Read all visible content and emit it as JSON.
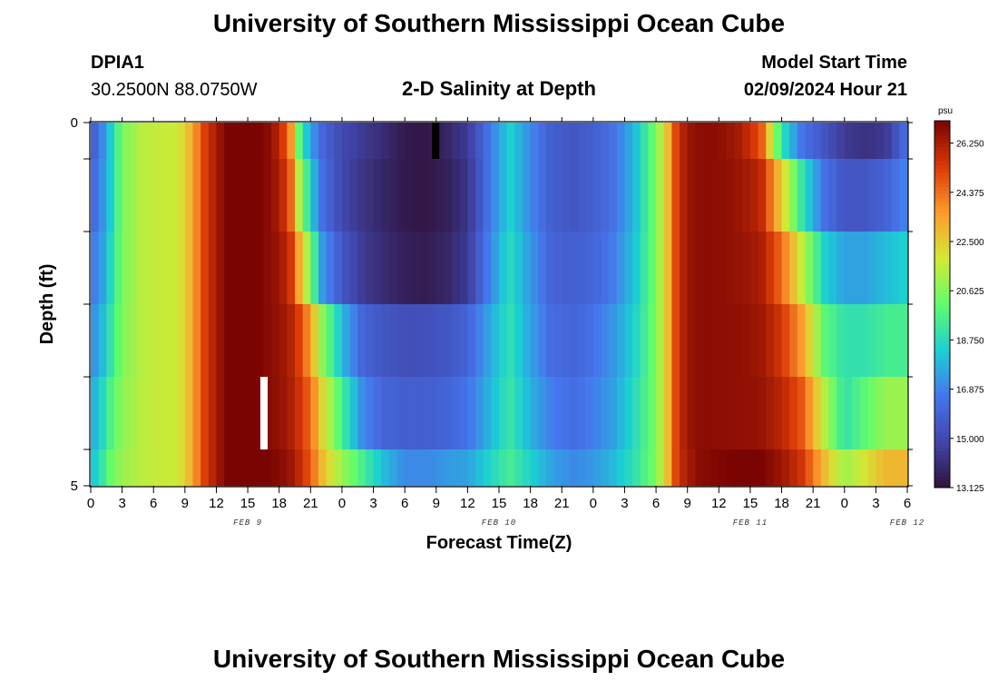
{
  "header": {
    "title": "University of Southern Mississippi Ocean Cube",
    "station": "DPIA1",
    "coordinates": "30.2500N  88.0750W",
    "plot_title": "2-D Salinity at Depth",
    "model_start_label": "Model Start Time",
    "model_start_value": "02/09/2024 Hour 21",
    "footer_title": "University of Southern Mississippi Ocean Cube"
  },
  "colorbar": {
    "unit": "psu",
    "labels": [
      "26.250",
      "24.375",
      "22.500",
      "20.625",
      "18.750",
      "16.875",
      "15.000",
      "13.125"
    ],
    "min": 13.125,
    "max": 27.1
  },
  "colors": {
    "colormap": [
      "#30123b",
      "#4145ab",
      "#4675ed",
      "#1bcfd4",
      "#61fc6c",
      "#d2e935",
      "#fe9b2d",
      "#db3a07",
      "#7a0403"
    ]
  },
  "chart_data": {
    "type": "heatmap",
    "title": "2-D Salinity at Depth",
    "xlabel": "Forecast Time(Z)",
    "ylabel": "Depth (ft)",
    "x_tick_labels": [
      "0",
      "3",
      "6",
      "9",
      "12",
      "15",
      "18",
      "21",
      "0",
      "3",
      "6",
      "9",
      "12",
      "15",
      "18",
      "21",
      "0",
      "3",
      "6",
      "9",
      "12",
      "15",
      "18",
      "21",
      "0",
      "3",
      "6"
    ],
    "day_labels": [
      {
        "label": "FEB 9",
        "hour": 15
      },
      {
        "label": "FEB 10",
        "hour": 39
      },
      {
        "label": "FEB 11",
        "hour": 63
      },
      {
        "label": "FEB 12",
        "hour": 78
      }
    ],
    "y_tick_labels": [
      "0",
      "5"
    ],
    "xlim": [
      0,
      78
    ],
    "ylim": [
      0,
      5
    ],
    "depth_levels": [
      0.5,
      1.5,
      2.5,
      3.5,
      4.5
    ],
    "depth_bands": [
      [
        0,
        0.5
      ],
      [
        0.5,
        1.5
      ],
      [
        1.5,
        2.5
      ],
      [
        2.5,
        3.5
      ],
      [
        3.5,
        4.5
      ],
      [
        4.5,
        5
      ]
    ],
    "value_range": [
      13.125,
      27.1
    ],
    "time_keyframes": [
      0,
      1,
      2,
      3,
      5,
      8,
      9,
      10,
      11,
      12,
      13,
      14,
      15,
      16,
      17,
      18,
      19,
      20,
      21,
      22,
      24,
      26,
      28,
      30,
      32,
      34,
      36,
      38,
      40,
      42,
      44,
      46,
      48,
      50,
      52,
      54,
      55,
      56,
      57,
      58,
      60,
      62,
      64,
      66,
      68,
      70,
      72,
      74,
      76,
      78
    ],
    "profiles": [
      [
        15.5,
        16.8,
        18.5,
        20.5,
        21.5,
        21.8,
        22.3,
        23.8,
        25.5,
        26.3,
        27.1,
        27.1,
        27.1,
        27.1,
        26.8,
        26.0,
        24.3,
        19.5,
        17.5,
        16.2,
        15.0,
        14.5,
        14.0,
        13.4,
        13.3,
        13.8,
        14.5,
        16.5,
        18.5,
        17.0,
        15.8,
        15.5,
        15.8,
        16.5,
        18.0,
        20.5,
        22.5,
        25.5,
        26.5,
        26.8,
        26.8,
        26.3,
        25.0,
        19.0,
        16.5,
        15.5,
        14.5,
        14.2,
        14.5,
        16.5
      ],
      [
        16.0,
        17.0,
        18.5,
        20.5,
        21.5,
        21.8,
        22.3,
        23.8,
        25.5,
        26.3,
        27.1,
        27.1,
        27.1,
        27.1,
        26.8,
        26.3,
        25.0,
        21.0,
        18.5,
        16.5,
        15.0,
        14.3,
        13.8,
        13.4,
        13.3,
        13.6,
        14.3,
        16.5,
        18.5,
        17.0,
        15.8,
        15.5,
        15.8,
        16.5,
        18.0,
        20.5,
        22.5,
        25.5,
        26.5,
        26.8,
        26.8,
        26.5,
        26.0,
        22.5,
        19.0,
        16.5,
        15.5,
        15.5,
        16.0,
        17.0
      ],
      [
        16.5,
        17.3,
        18.8,
        20.5,
        21.5,
        21.8,
        22.3,
        23.8,
        25.5,
        26.3,
        27.1,
        27.1,
        27.1,
        27.1,
        26.8,
        26.5,
        25.8,
        23.0,
        20.5,
        17.5,
        15.5,
        14.5,
        14.0,
        13.6,
        13.5,
        13.8,
        14.5,
        16.8,
        18.8,
        17.3,
        16.0,
        15.8,
        16.0,
        16.8,
        18.2,
        20.5,
        22.5,
        25.5,
        26.5,
        26.8,
        26.8,
        26.6,
        26.3,
        24.5,
        21.5,
        18.5,
        17.5,
        17.5,
        18.0,
        18.5
      ],
      [
        17.0,
        17.8,
        19.2,
        20.6,
        21.5,
        21.8,
        22.3,
        23.8,
        25.5,
        26.3,
        27.1,
        27.1,
        27.1,
        27.1,
        26.8,
        26.6,
        26.2,
        25.2,
        23.5,
        21.0,
        18.0,
        16.0,
        15.5,
        15.2,
        15.3,
        15.5,
        16.0,
        17.5,
        19.0,
        17.5,
        16.3,
        16.0,
        16.5,
        17.3,
        18.5,
        20.5,
        22.5,
        25.5,
        26.5,
        26.8,
        26.8,
        26.7,
        26.5,
        25.5,
        23.5,
        20.0,
        19.0,
        19.0,
        19.5,
        19.5
      ],
      [
        17.5,
        18.5,
        19.8,
        20.8,
        21.5,
        21.8,
        22.3,
        23.8,
        25.5,
        26.3,
        27.1,
        27.1,
        27.1,
        27.1,
        26.8,
        26.7,
        26.3,
        25.5,
        24.5,
        22.5,
        19.5,
        17.0,
        16.0,
        15.8,
        15.8,
        16.0,
        16.5,
        17.8,
        19.2,
        17.8,
        16.8,
        16.3,
        16.8,
        17.5,
        18.8,
        20.5,
        22.5,
        25.5,
        26.5,
        26.8,
        26.8,
        26.7,
        26.6,
        26.0,
        24.8,
        21.5,
        19.0,
        20.0,
        21.0,
        21.0
      ],
      [
        18.0,
        19.0,
        20.3,
        21.0,
        21.5,
        21.8,
        22.3,
        23.8,
        25.5,
        26.3,
        27.1,
        27.1,
        27.1,
        27.1,
        27.1,
        26.9,
        26.6,
        25.8,
        24.8,
        23.0,
        21.0,
        19.5,
        18.0,
        17.0,
        17.0,
        17.3,
        17.5,
        18.5,
        19.5,
        18.5,
        17.5,
        17.0,
        17.3,
        18.0,
        19.0,
        20.5,
        22.5,
        25.5,
        26.3,
        26.8,
        27.0,
        27.1,
        27.1,
        26.5,
        25.5,
        23.0,
        21.0,
        22.0,
        23.0,
        23.0
      ]
    ],
    "missing_cells": [
      {
        "hour_start": 32.6,
        "hour_end": 33.3,
        "depth_start": 0,
        "depth_end": 0.5,
        "value": "below-min"
      },
      {
        "hour_start": 16.2,
        "hour_end": 16.9,
        "depth_start": 3.5,
        "depth_end": 4.5,
        "value": "no-data"
      }
    ]
  }
}
